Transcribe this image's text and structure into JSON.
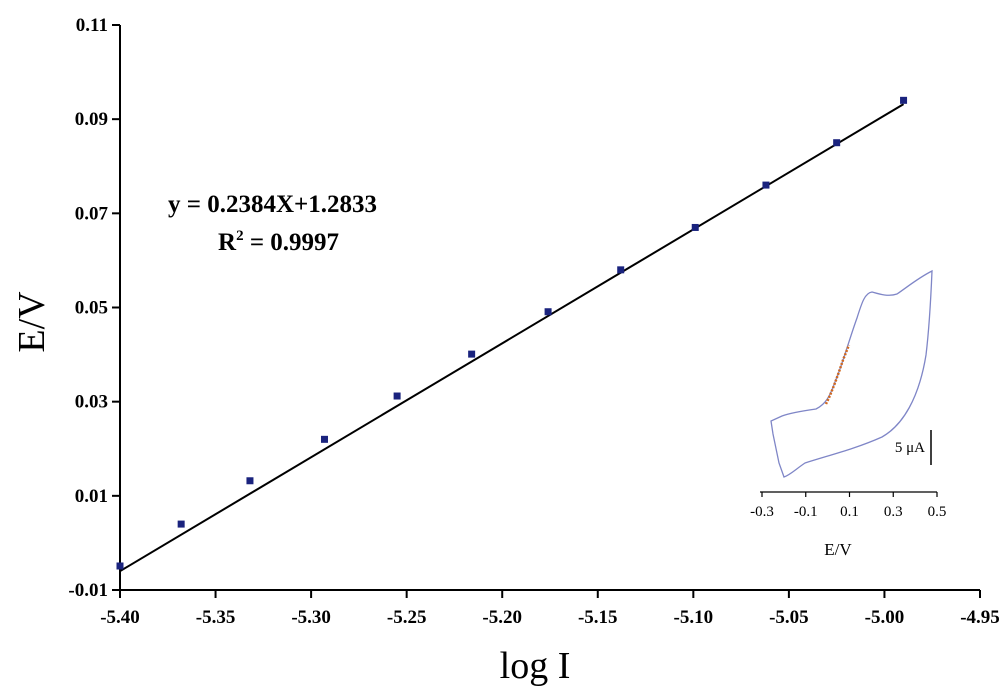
{
  "chart_data": [
    {
      "type": "scatter",
      "xlabel": "log I",
      "ylabel": "E/V",
      "xlim": [
        -5.4,
        -4.95
      ],
      "ylim": [
        -0.01,
        0.11
      ],
      "xticks": [
        "-5.40",
        "-5.35",
        "-5.30",
        "-5.25",
        "-5.20",
        "-5.15",
        "-5.10",
        "-5.05",
        "-5.00",
        "-4.95"
      ],
      "yticks": [
        "-0.01",
        "0.01",
        "0.03",
        "0.05",
        "0.07",
        "0.09",
        "0.11"
      ],
      "grid": false,
      "series": [
        {
          "x": [
            -5.4,
            -5.368,
            -5.332,
            -5.293,
            -5.255,
            -5.216,
            -5.176,
            -5.138,
            -5.099,
            -5.062,
            -5.025,
            -4.99
          ],
          "y": [
            -0.0049,
            0.004,
            0.0132,
            0.022,
            0.0312,
            0.0401,
            0.0491,
            0.058,
            0.067,
            0.076,
            0.085,
            0.094
          ],
          "marker_color": "#1a237e"
        }
      ],
      "fit_line": {
        "x": [
          -5.4,
          -4.99
        ],
        "y": [
          -0.006,
          0.0932
        ]
      },
      "annotations": [
        "y = 0.2384X+1.2833",
        "R",
        "2",
        " = 0.9997"
      ]
    },
    {
      "type": "line",
      "role": "inset",
      "xlabel": "E/V",
      "xlim": [
        -0.3,
        0.5
      ],
      "xticks": [
        "-0.3",
        "-0.1",
        "0.1",
        "0.3",
        "0.5"
      ],
      "scale_bar": "5 μA",
      "cv_color": "#7f86c7",
      "highlight_color": "#d2691e"
    }
  ]
}
